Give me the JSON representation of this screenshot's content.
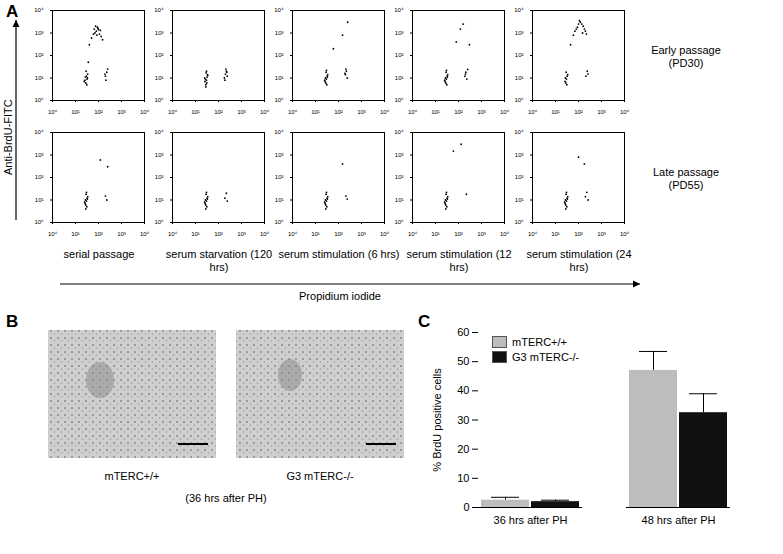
{
  "panel_labels": [
    "A",
    "B",
    "C"
  ],
  "panel_a": {
    "ylabel": "Anti-BrdU-FITC",
    "xlabel": "Propidium iodide",
    "row_labels": [
      "Early passage (PD30)",
      "Late passage (PD55)"
    ],
    "column_labels": [
      "serial passage",
      "serum starvation (120 hrs)",
      "serum stimulation (6 hrs)",
      "serum stimulation (12 hrs)",
      "serum stimulation (24 hrs)"
    ]
  },
  "panel_b": {
    "images": [
      {
        "label": "mTERC+/+"
      },
      {
        "label": "G3 mTERC-/-"
      }
    ],
    "caption": "(36 hrs after PH)"
  },
  "chart_data": [
    {
      "type": "scatter",
      "log": true,
      "color": "#000000",
      "marker": "circle",
      "xlim": [
        1,
        10000
      ],
      "ylim": [
        1,
        10000
      ],
      "xticks": [
        {
          "value": 1,
          "label": "10⁰"
        },
        {
          "value": 10,
          "label": "10¹"
        },
        {
          "value": 100,
          "label": "10²"
        },
        {
          "value": 1000,
          "label": "10³"
        },
        {
          "value": 10000,
          "label": "10⁴"
        }
      ],
      "yticks": [
        {
          "value": 1,
          "label": "10⁰"
        },
        {
          "value": 10,
          "label": "10¹"
        },
        {
          "value": 100,
          "label": "10²"
        },
        {
          "value": 1000,
          "label": "10³"
        },
        {
          "value": 10000,
          "label": "10⁴"
        }
      ],
      "x": [
        28,
        32,
        30,
        26,
        34,
        29,
        31,
        27,
        24,
        33,
        36,
        40,
        50,
        60,
        70,
        80,
        90,
        100,
        110,
        120,
        130,
        150,
        65,
        85,
        75,
        95,
        200,
        230,
        210,
        250,
        190
      ],
      "values": [
        6,
        9,
        12,
        8,
        15,
        20,
        5,
        11,
        7,
        10,
        50,
        300,
        600,
        900,
        1000,
        1200,
        1800,
        1400,
        900,
        1300,
        700,
        500,
        1500,
        800,
        2000,
        1600,
        12,
        18,
        8,
        25,
        15
      ]
    },
    {
      "type": "scatter",
      "log": true,
      "color": "#000000",
      "marker": "circle",
      "xlim": [
        1,
        10000
      ],
      "ylim": [
        1,
        10000
      ],
      "xticks": [
        {
          "value": 1,
          "label": "10⁰"
        },
        {
          "value": 10,
          "label": "10¹"
        },
        {
          "value": 100,
          "label": "10²"
        },
        {
          "value": 1000,
          "label": "10³"
        },
        {
          "value": 10000,
          "label": "10⁴"
        }
      ],
      "yticks": [
        {
          "value": 1,
          "label": "10⁰"
        },
        {
          "value": 10,
          "label": "10¹"
        },
        {
          "value": 100,
          "label": "10²"
        },
        {
          "value": 1000,
          "label": "10³"
        },
        {
          "value": 10000,
          "label": "10⁴"
        }
      ],
      "x": [
        28,
        30,
        32,
        26,
        34,
        29,
        31,
        27,
        25,
        33,
        30,
        28,
        180,
        200,
        220,
        240,
        210,
        190,
        230
      ],
      "values": [
        5,
        8,
        11,
        7,
        13,
        17,
        6,
        9,
        10,
        14,
        20,
        4,
        10,
        15,
        20,
        12,
        25,
        8,
        18
      ]
    },
    {
      "type": "scatter",
      "log": true,
      "color": "#000000",
      "marker": "circle",
      "xlim": [
        1,
        10000
      ],
      "ylim": [
        1,
        10000
      ],
      "xticks": [
        {
          "value": 1,
          "label": "10⁰"
        },
        {
          "value": 10,
          "label": "10¹"
        },
        {
          "value": 100,
          "label": "10²"
        },
        {
          "value": 1000,
          "label": "10³"
        },
        {
          "value": 10000,
          "label": "10⁴"
        }
      ],
      "yticks": [
        {
          "value": 1,
          "label": "10⁰"
        },
        {
          "value": 10,
          "label": "10¹"
        },
        {
          "value": 100,
          "label": "10²"
        },
        {
          "value": 1000,
          "label": "10³"
        },
        {
          "value": 10000,
          "label": "10⁴"
        }
      ],
      "x": [
        28,
        30,
        32,
        26,
        34,
        29,
        31,
        27,
        25,
        33,
        30,
        200,
        220,
        240,
        210,
        190,
        60,
        150,
        250
      ],
      "values": [
        6,
        9,
        12,
        7,
        14,
        18,
        5,
        10,
        8,
        11,
        22,
        14,
        20,
        10,
        25,
        16,
        200,
        800,
        3000
      ]
    },
    {
      "type": "scatter",
      "log": true,
      "color": "#000000",
      "marker": "circle",
      "xlim": [
        1,
        10000
      ],
      "ylim": [
        1,
        10000
      ],
      "xticks": [
        {
          "value": 1,
          "label": "10⁰"
        },
        {
          "value": 10,
          "label": "10¹"
        },
        {
          "value": 100,
          "label": "10²"
        },
        {
          "value": 1000,
          "label": "10³"
        },
        {
          "value": 10000,
          "label": "10⁴"
        }
      ],
      "yticks": [
        {
          "value": 1,
          "label": "10⁰"
        },
        {
          "value": 10,
          "label": "10¹"
        },
        {
          "value": 100,
          "label": "10²"
        },
        {
          "value": 1000,
          "label": "10³"
        },
        {
          "value": 10000,
          "label": "10⁴"
        }
      ],
      "x": [
        28,
        30,
        32,
        26,
        34,
        29,
        31,
        27,
        25,
        33,
        30,
        190,
        210,
        230,
        250,
        200,
        80,
        120,
        160,
        300
      ],
      "values": [
        6,
        9,
        12,
        7,
        14,
        18,
        5,
        10,
        8,
        11,
        22,
        12,
        18,
        9,
        24,
        15,
        400,
        1500,
        2500,
        300
      ]
    },
    {
      "type": "scatter",
      "log": true,
      "color": "#000000",
      "marker": "circle",
      "xlim": [
        1,
        10000
      ],
      "ylim": [
        1,
        10000
      ],
      "xticks": [
        {
          "value": 1,
          "label": "10⁰"
        },
        {
          "value": 10,
          "label": "10¹"
        },
        {
          "value": 100,
          "label": "10²"
        },
        {
          "value": 1000,
          "label": "10³"
        },
        {
          "value": 10000,
          "label": "10⁴"
        }
      ],
      "yticks": [
        {
          "value": 1,
          "label": "10⁰"
        },
        {
          "value": 10,
          "label": "10¹"
        },
        {
          "value": 100,
          "label": "10²"
        },
        {
          "value": 1000,
          "label": "10³"
        },
        {
          "value": 10000,
          "label": "10⁴"
        }
      ],
      "x": [
        28,
        30,
        32,
        26,
        34,
        29,
        31,
        27,
        45,
        60,
        80,
        100,
        120,
        140,
        160,
        180,
        200,
        220,
        90,
        110,
        150,
        70,
        210,
        240,
        260
      ],
      "values": [
        6,
        9,
        12,
        7,
        14,
        18,
        5,
        10,
        300,
        800,
        1500,
        2500,
        3000,
        2500,
        2000,
        1500,
        1200,
        900,
        1800,
        3500,
        1000,
        1200,
        12,
        20,
        15
      ]
    },
    {
      "type": "scatter",
      "log": true,
      "color": "#000000",
      "marker": "circle",
      "xlim": [
        1,
        10000
      ],
      "ylim": [
        1,
        10000
      ],
      "xticks": [
        {
          "value": 1,
          "label": "10⁰"
        },
        {
          "value": 10,
          "label": "10¹"
        },
        {
          "value": 100,
          "label": "10²"
        },
        {
          "value": 1000,
          "label": "10³"
        },
        {
          "value": 10000,
          "label": "10⁴"
        }
      ],
      "yticks": [
        {
          "value": 1,
          "label": "10⁰"
        },
        {
          "value": 10,
          "label": "10¹"
        },
        {
          "value": 100,
          "label": "10²"
        },
        {
          "value": 1000,
          "label": "10³"
        },
        {
          "value": 10000,
          "label": "10⁴"
        }
      ],
      "x": [
        28,
        30,
        32,
        26,
        34,
        29,
        31,
        27,
        25,
        33,
        30,
        28,
        200,
        230,
        120,
        250
      ],
      "values": [
        6,
        9,
        12,
        7,
        14,
        18,
        5,
        10,
        8,
        11,
        22,
        4,
        15,
        10,
        600,
        300
      ]
    },
    {
      "type": "scatter",
      "log": true,
      "color": "#000000",
      "marker": "circle",
      "xlim": [
        1,
        10000
      ],
      "ylim": [
        1,
        10000
      ],
      "xticks": [
        {
          "value": 1,
          "label": "10⁰"
        },
        {
          "value": 10,
          "label": "10¹"
        },
        {
          "value": 100,
          "label": "10²"
        },
        {
          "value": 1000,
          "label": "10³"
        },
        {
          "value": 10000,
          "label": "10⁴"
        }
      ],
      "yticks": [
        {
          "value": 1,
          "label": "10⁰"
        },
        {
          "value": 10,
          "label": "10¹"
        },
        {
          "value": 100,
          "label": "10²"
        },
        {
          "value": 1000,
          "label": "10³"
        },
        {
          "value": 10000,
          "label": "10⁴"
        }
      ],
      "x": [
        28,
        30,
        32,
        26,
        34,
        29,
        31,
        27,
        25,
        33,
        30,
        28,
        190,
        220,
        240
      ],
      "values": [
        6,
        9,
        12,
        7,
        14,
        18,
        5,
        10,
        8,
        11,
        22,
        4,
        12,
        20,
        9
      ]
    },
    {
      "type": "scatter",
      "log": true,
      "color": "#000000",
      "marker": "circle",
      "xlim": [
        1,
        10000
      ],
      "ylim": [
        1,
        10000
      ],
      "xticks": [
        {
          "value": 1,
          "label": "10⁰"
        },
        {
          "value": 10,
          "label": "10¹"
        },
        {
          "value": 100,
          "label": "10²"
        },
        {
          "value": 1000,
          "label": "10³"
        },
        {
          "value": 10000,
          "label": "10⁴"
        }
      ],
      "yticks": [
        {
          "value": 1,
          "label": "10⁰"
        },
        {
          "value": 10,
          "label": "10¹"
        },
        {
          "value": 100,
          "label": "10²"
        },
        {
          "value": 1000,
          "label": "10³"
        },
        {
          "value": 10000,
          "label": "10⁴"
        }
      ],
      "x": [
        28,
        30,
        32,
        26,
        34,
        29,
        31,
        27,
        25,
        33,
        30,
        28,
        210,
        240,
        150
      ],
      "values": [
        6,
        9,
        12,
        7,
        14,
        18,
        5,
        10,
        8,
        11,
        22,
        4,
        15,
        11,
        400
      ]
    },
    {
      "type": "scatter",
      "log": true,
      "color": "#000000",
      "marker": "circle",
      "xlim": [
        1,
        10000
      ],
      "ylim": [
        1,
        10000
      ],
      "xticks": [
        {
          "value": 1,
          "label": "10⁰"
        },
        {
          "value": 10,
          "label": "10¹"
        },
        {
          "value": 100,
          "label": "10²"
        },
        {
          "value": 1000,
          "label": "10³"
        },
        {
          "value": 10000,
          "label": "10⁴"
        }
      ],
      "yticks": [
        {
          "value": 1,
          "label": "10⁰"
        },
        {
          "value": 10,
          "label": "10¹"
        },
        {
          "value": 100,
          "label": "10²"
        },
        {
          "value": 1000,
          "label": "10³"
        },
        {
          "value": 10000,
          "label": "10⁴"
        }
      ],
      "x": [
        28,
        30,
        32,
        26,
        34,
        29,
        31,
        27,
        25,
        33,
        30,
        28,
        220,
        60,
        130
      ],
      "values": [
        6,
        9,
        12,
        7,
        14,
        18,
        5,
        10,
        8,
        11,
        22,
        4,
        18,
        1500,
        3000
      ]
    },
    {
      "type": "scatter",
      "log": true,
      "color": "#000000",
      "marker": "circle",
      "xlim": [
        1,
        10000
      ],
      "ylim": [
        1,
        10000
      ],
      "xticks": [
        {
          "value": 1,
          "label": "10⁰"
        },
        {
          "value": 10,
          "label": "10¹"
        },
        {
          "value": 100,
          "label": "10²"
        },
        {
          "value": 1000,
          "label": "10³"
        },
        {
          "value": 10000,
          "label": "10⁴"
        }
      ],
      "yticks": [
        {
          "value": 1,
          "label": "10⁰"
        },
        {
          "value": 10,
          "label": "10¹"
        },
        {
          "value": 100,
          "label": "10²"
        },
        {
          "value": 1000,
          "label": "10³"
        },
        {
          "value": 10000,
          "label": "10⁴"
        }
      ],
      "x": [
        28,
        30,
        32,
        26,
        34,
        29,
        31,
        27,
        25,
        33,
        30,
        28,
        200,
        230,
        260,
        100,
        180
      ],
      "values": [
        6,
        9,
        12,
        7,
        14,
        18,
        5,
        10,
        8,
        11,
        22,
        4,
        14,
        22,
        10,
        800,
        400
      ]
    },
    {
      "type": "bar",
      "ylabel": "% BrdU positive cells",
      "categories": [
        "36 hrs after PH",
        "48 hrs after PH"
      ],
      "series": [
        {
          "name": "mTERC+/+",
          "color": "#bdbdbd",
          "values": [
            2.5,
            47
          ],
          "errors": [
            1,
            6.5
          ]
        },
        {
          "name": "G3 mTERC-/-",
          "color": "#111111",
          "values": [
            2,
            32.5
          ],
          "errors": [
            0.5,
            6.5
          ]
        }
      ],
      "ylim": [
        0,
        60
      ],
      "yticks": [
        0,
        10,
        20,
        30,
        40,
        50,
        60
      ],
      "grid": false,
      "legend": "top-left"
    }
  ]
}
